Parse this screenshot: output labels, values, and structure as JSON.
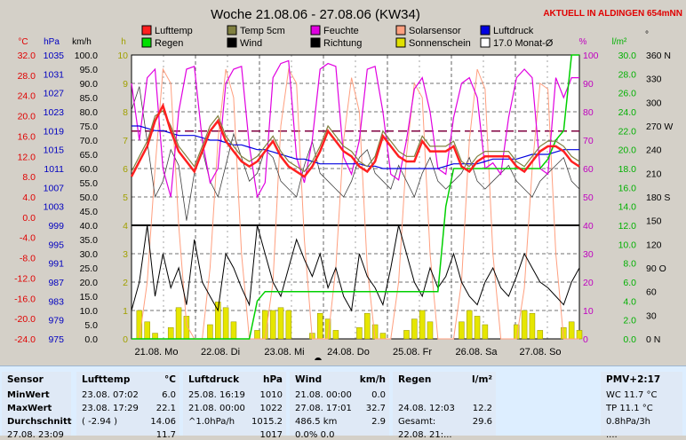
{
  "chart_data": {
    "type": "line",
    "title": "Woche 21.08.06 - 27.08.06 (KW34)",
    "subtitle": "AKTUELL IN ALDINGEN 654mNN",
    "x_labels": [
      "21.08. Mo",
      "22.08. Di",
      "23.08. Mi",
      "24.08. Do",
      "25.08. Fr",
      "26.08. Sa",
      "27.08. So"
    ],
    "axes": {
      "celsius": {
        "unit": "°C",
        "ticks": [
          "32.0",
          "28.0",
          "24.0",
          "20.0",
          "16.0",
          "12.0",
          "8.0",
          "4.0",
          "0.0",
          "-4.0",
          "-8.0",
          "-12.0",
          "-16.0",
          "-20.0",
          "-24.0"
        ],
        "range": [
          -24,
          32
        ],
        "color": "#e00000"
      },
      "hpa": {
        "unit": "hPa",
        "ticks": [
          "1035",
          "1031",
          "1027",
          "1023",
          "1019",
          "1015",
          "1011",
          "1007",
          "1003",
          "999",
          "995",
          "991",
          "987",
          "983",
          "979",
          "975"
        ],
        "range": [
          975,
          1035
        ],
        "color": "#0000c0"
      },
      "kmh": {
        "unit": "km/h",
        "ticks": [
          "100.0",
          "95.0",
          "90.0",
          "85.0",
          "80.0",
          "75.0",
          "70.0",
          "65.0",
          "60.0",
          "55.0",
          "50.0",
          "45.0",
          "40.0",
          "35.0",
          "30.0",
          "25.0",
          "20.0",
          "15.0",
          "10.0",
          "5.0",
          "0.0"
        ],
        "range": [
          0,
          100
        ],
        "color": "#000000"
      },
      "hours": {
        "unit": "h",
        "ticks": [
          "10",
          "9",
          "8",
          "7",
          "6",
          "5",
          "4",
          "3",
          "2",
          "1",
          "0"
        ],
        "range": [
          0,
          10
        ],
        "color": "#a0a000"
      },
      "percent_left": {
        "ticks": [
          "100",
          "90",
          "80",
          "70",
          "60",
          "50",
          "40",
          "30",
          "20",
          "10",
          "0"
        ],
        "range": [
          0,
          100
        ],
        "color": "#c000c0"
      },
      "percent": {
        "unit": "%",
        "ticks": [
          "100",
          "90",
          "80",
          "70",
          "60",
          "50",
          "40",
          "30",
          "20",
          "10",
          "0"
        ],
        "range": [
          0,
          100
        ],
        "color": "#c000c0"
      },
      "rain": {
        "unit": "l/m²",
        "ticks": [
          "30.0",
          "28.0",
          "26.0",
          "24.0",
          "22.0",
          "20.0",
          "18.0",
          "16.0",
          "14.0",
          "12.0",
          "10.0",
          "8.0",
          "6.0",
          "4.0",
          "2.0",
          "0.0"
        ],
        "range": [
          0,
          30
        ],
        "color": "#00b000"
      },
      "direction": {
        "unit": "°",
        "ticks": [
          "360 N",
          "330",
          "300",
          "270 W",
          "240",
          "210",
          "180 S",
          "150",
          "120",
          "90 O",
          "60",
          "30",
          "0   N"
        ],
        "range": [
          0,
          360
        ],
        "color": "#000000"
      }
    },
    "legend": [
      {
        "name": "Lufttemp",
        "color": "#ff2020"
      },
      {
        "name": "Temp 5cm",
        "color": "#808040"
      },
      {
        "name": "Feuchte",
        "color": "#e000e0"
      },
      {
        "name": "Solarsensor",
        "color": "#ffa080"
      },
      {
        "name": "Luftdruck",
        "color": "#0000e0"
      },
      {
        "name": "Regen",
        "color": "#00e000"
      },
      {
        "name": "Wind",
        "color": "#000000"
      },
      {
        "name": "Richtung",
        "color": "#000000"
      },
      {
        "name": "Sonnenschein",
        "color": "#e0e000"
      },
      {
        "name": "17.0 Monat-Ø",
        "color": "#ffffff"
      }
    ],
    "series": [
      {
        "name": "Lufttemp",
        "axis": "celsius",
        "values": [
          8,
          11,
          14,
          19,
          22,
          17,
          13,
          11,
          9,
          13,
          17,
          19,
          15,
          13,
          11,
          10,
          11,
          13,
          15,
          12,
          10,
          9,
          8,
          10,
          13,
          17,
          15,
          13,
          12,
          10,
          9,
          11,
          16,
          14,
          12,
          11,
          11,
          15,
          13,
          13,
          13,
          14,
          10,
          9,
          11,
          12,
          12,
          12,
          12,
          10,
          9,
          11,
          13,
          14,
          14,
          13,
          11,
          10
        ]
      },
      {
        "name": "Temp 5cm",
        "axis": "celsius",
        "values": [
          9,
          12,
          15,
          20,
          21,
          18,
          14,
          12,
          10,
          14,
          18,
          20,
          16,
          14,
          12,
          11,
          12,
          14,
          16,
          13,
          11,
          10,
          9,
          11,
          14,
          18,
          16,
          14,
          13,
          11,
          10,
          12,
          17,
          15,
          13,
          12,
          12,
          16,
          14,
          14,
          14,
          15,
          11,
          10,
          12,
          13,
          13,
          13,
          13,
          11,
          10,
          12,
          14,
          15,
          15,
          14,
          12,
          11
        ]
      },
      {
        "name": "Feuchte",
        "axis": "percent",
        "values": [
          90,
          70,
          92,
          95,
          60,
          50,
          80,
          95,
          96,
          70,
          55,
          60,
          90,
          95,
          96,
          68,
          50,
          55,
          92,
          97,
          98,
          64,
          55,
          70,
          95,
          97,
          96,
          64,
          58,
          70,
          95,
          96,
          80,
          58,
          56,
          70,
          88,
          92,
          80,
          60,
          58,
          78,
          90,
          92,
          85,
          60,
          62,
          58,
          78,
          92,
          95,
          92,
          60,
          58,
          92,
          85,
          92,
          92
        ]
      },
      {
        "name": "Luftdruck",
        "axis": "hpa",
        "values": [
          1020,
          1020,
          1019.5,
          1019,
          1019,
          1018.5,
          1018,
          1018,
          1018,
          1017.5,
          1017,
          1017,
          1016.5,
          1016,
          1016,
          1015.5,
          1015,
          1015,
          1014.5,
          1014,
          1013.5,
          1013,
          1013,
          1012.5,
          1012,
          1012,
          1012,
          1012,
          1012,
          1012,
          1011.5,
          1011.5,
          1011,
          1011,
          1011,
          1011,
          1011,
          1011,
          1011,
          1011,
          1011.5,
          1012,
          1012,
          1012,
          1012,
          1012.5,
          1013,
          1013,
          1013,
          1013,
          1013.5,
          1014,
          1014,
          1014,
          1014.5,
          1015,
          1015,
          1015
        ]
      },
      {
        "name": "Regen",
        "axis": "rain",
        "values": [
          0,
          0,
          0,
          0,
          0,
          0,
          0,
          0,
          0,
          0,
          0,
          0,
          0,
          0,
          0,
          0,
          4,
          5,
          5,
          5,
          5,
          5,
          5,
          5,
          5,
          5,
          5,
          5,
          5,
          5,
          5,
          5,
          5,
          5,
          5,
          5,
          5,
          5,
          5,
          5,
          14,
          18,
          18,
          18,
          18,
          18,
          18,
          18,
          18,
          18,
          18,
          18,
          18,
          19,
          21,
          22,
          30,
          30
        ]
      },
      {
        "name": "Wind",
        "axis": "kmh",
        "values": [
          10,
          20,
          40,
          15,
          30,
          18,
          25,
          12,
          35,
          20,
          15,
          10,
          30,
          25,
          18,
          12,
          40,
          30,
          20,
          15,
          25,
          35,
          28,
          22,
          30,
          18,
          25,
          15,
          10,
          30,
          22,
          18,
          12,
          25,
          40,
          30,
          20,
          15,
          25,
          18,
          22,
          30,
          20,
          15,
          12,
          20,
          25,
          18,
          15,
          22,
          30,
          25,
          20,
          18,
          15,
          12,
          20,
          25
        ]
      },
      {
        "name": "Richtung",
        "axis": "direction",
        "values": [
          290,
          320,
          250,
          180,
          200,
          240,
          220,
          150,
          210,
          240,
          200,
          180,
          220,
          260,
          230,
          200,
          210,
          240,
          230,
          200,
          190,
          180,
          220,
          250,
          210,
          200,
          190,
          180,
          200,
          230,
          240,
          210,
          200,
          190,
          220,
          200,
          180,
          210,
          230,
          200,
          190,
          200,
          210,
          230,
          200,
          190,
          200,
          210,
          220,
          200,
          190,
          180,
          200,
          210,
          220,
          230,
          200,
          190
        ]
      },
      {
        "name": "Solarsensor",
        "axis": "percent",
        "values": [
          0,
          0,
          20,
          60,
          95,
          90,
          40,
          5,
          0,
          0,
          25,
          70,
          95,
          85,
          30,
          0,
          0,
          0,
          20,
          75,
          95,
          90,
          35,
          0,
          0,
          0,
          25,
          70,
          92,
          80,
          25,
          0,
          0,
          0,
          20,
          65,
          90,
          85,
          30,
          0,
          0,
          0,
          20,
          70,
          95,
          88,
          30,
          0,
          0,
          0,
          18,
          60,
          90,
          88,
          30,
          0,
          0,
          0
        ]
      },
      {
        "name": "Sonnenschein",
        "axis": "hours",
        "values": [
          0,
          1,
          0.6,
          0.2,
          0,
          0.4,
          1.1,
          0.8,
          0,
          0,
          0.5,
          1.3,
          1.1,
          0.6,
          0,
          0,
          0.3,
          1,
          1,
          1.1,
          1,
          0,
          0,
          0.2,
          0.9,
          0.7,
          0.3,
          0,
          0,
          0.4,
          0.9,
          0.5,
          0.2,
          0,
          0,
          0.3,
          0.7,
          1,
          0.6,
          0,
          0,
          0,
          0.6,
          1,
          0.8,
          0.5,
          0,
          0,
          0,
          0.5,
          1,
          0.9,
          0.3,
          0,
          0,
          0.4,
          0.6,
          0.3
        ]
      }
    ],
    "month_avg": 17.0
  },
  "table": {
    "sensor": {
      "header": "Sensor",
      "rows": [
        "MinWert",
        "MaxWert",
        "Durchschnitt",
        "27.08. 23:09"
      ]
    },
    "lufttemp": {
      "header": "Lufttemp",
      "unit": "°C",
      "rows": [
        [
          "23.08.  07:02",
          "6.0"
        ],
        [
          "23.08.  17:29",
          "22.1"
        ],
        [
          "( -2.94 )",
          "14.06"
        ],
        [
          "",
          "11.7"
        ]
      ]
    },
    "luftdruck": {
      "header": "Luftdruck",
      "unit": "hPa",
      "rows": [
        [
          "25.08.  16:19",
          "1010"
        ],
        [
          "21.08.  00:00",
          "1022"
        ],
        [
          "^1.0hPa/h",
          "1015.2"
        ],
        [
          "",
          "1017"
        ]
      ]
    },
    "wind": {
      "header": "Wind",
      "unit": "km/h",
      "rows": [
        [
          "21.08.  00:00",
          "0.0"
        ],
        [
          "27.08.  17:01",
          "32.7"
        ],
        [
          "486.5 km",
          "2.9"
        ],
        [
          "0.0% 0.0",
          ""
        ]
      ]
    },
    "regen": {
      "header": "Regen",
      "unit": "l/m²",
      "rows": [
        [
          "",
          ""
        ],
        [
          "24.08.  12:03",
          "12.2"
        ],
        [
          "Gesamt:",
          "29.6"
        ],
        [
          "22.08. 21:...",
          ""
        ]
      ]
    },
    "pmv": {
      "header": "PMV+2:17",
      "rows": [
        "WC 11.7 °C",
        "TP 11.1 °C",
        "0.8hPa/3h",
        "...."
      ]
    }
  }
}
